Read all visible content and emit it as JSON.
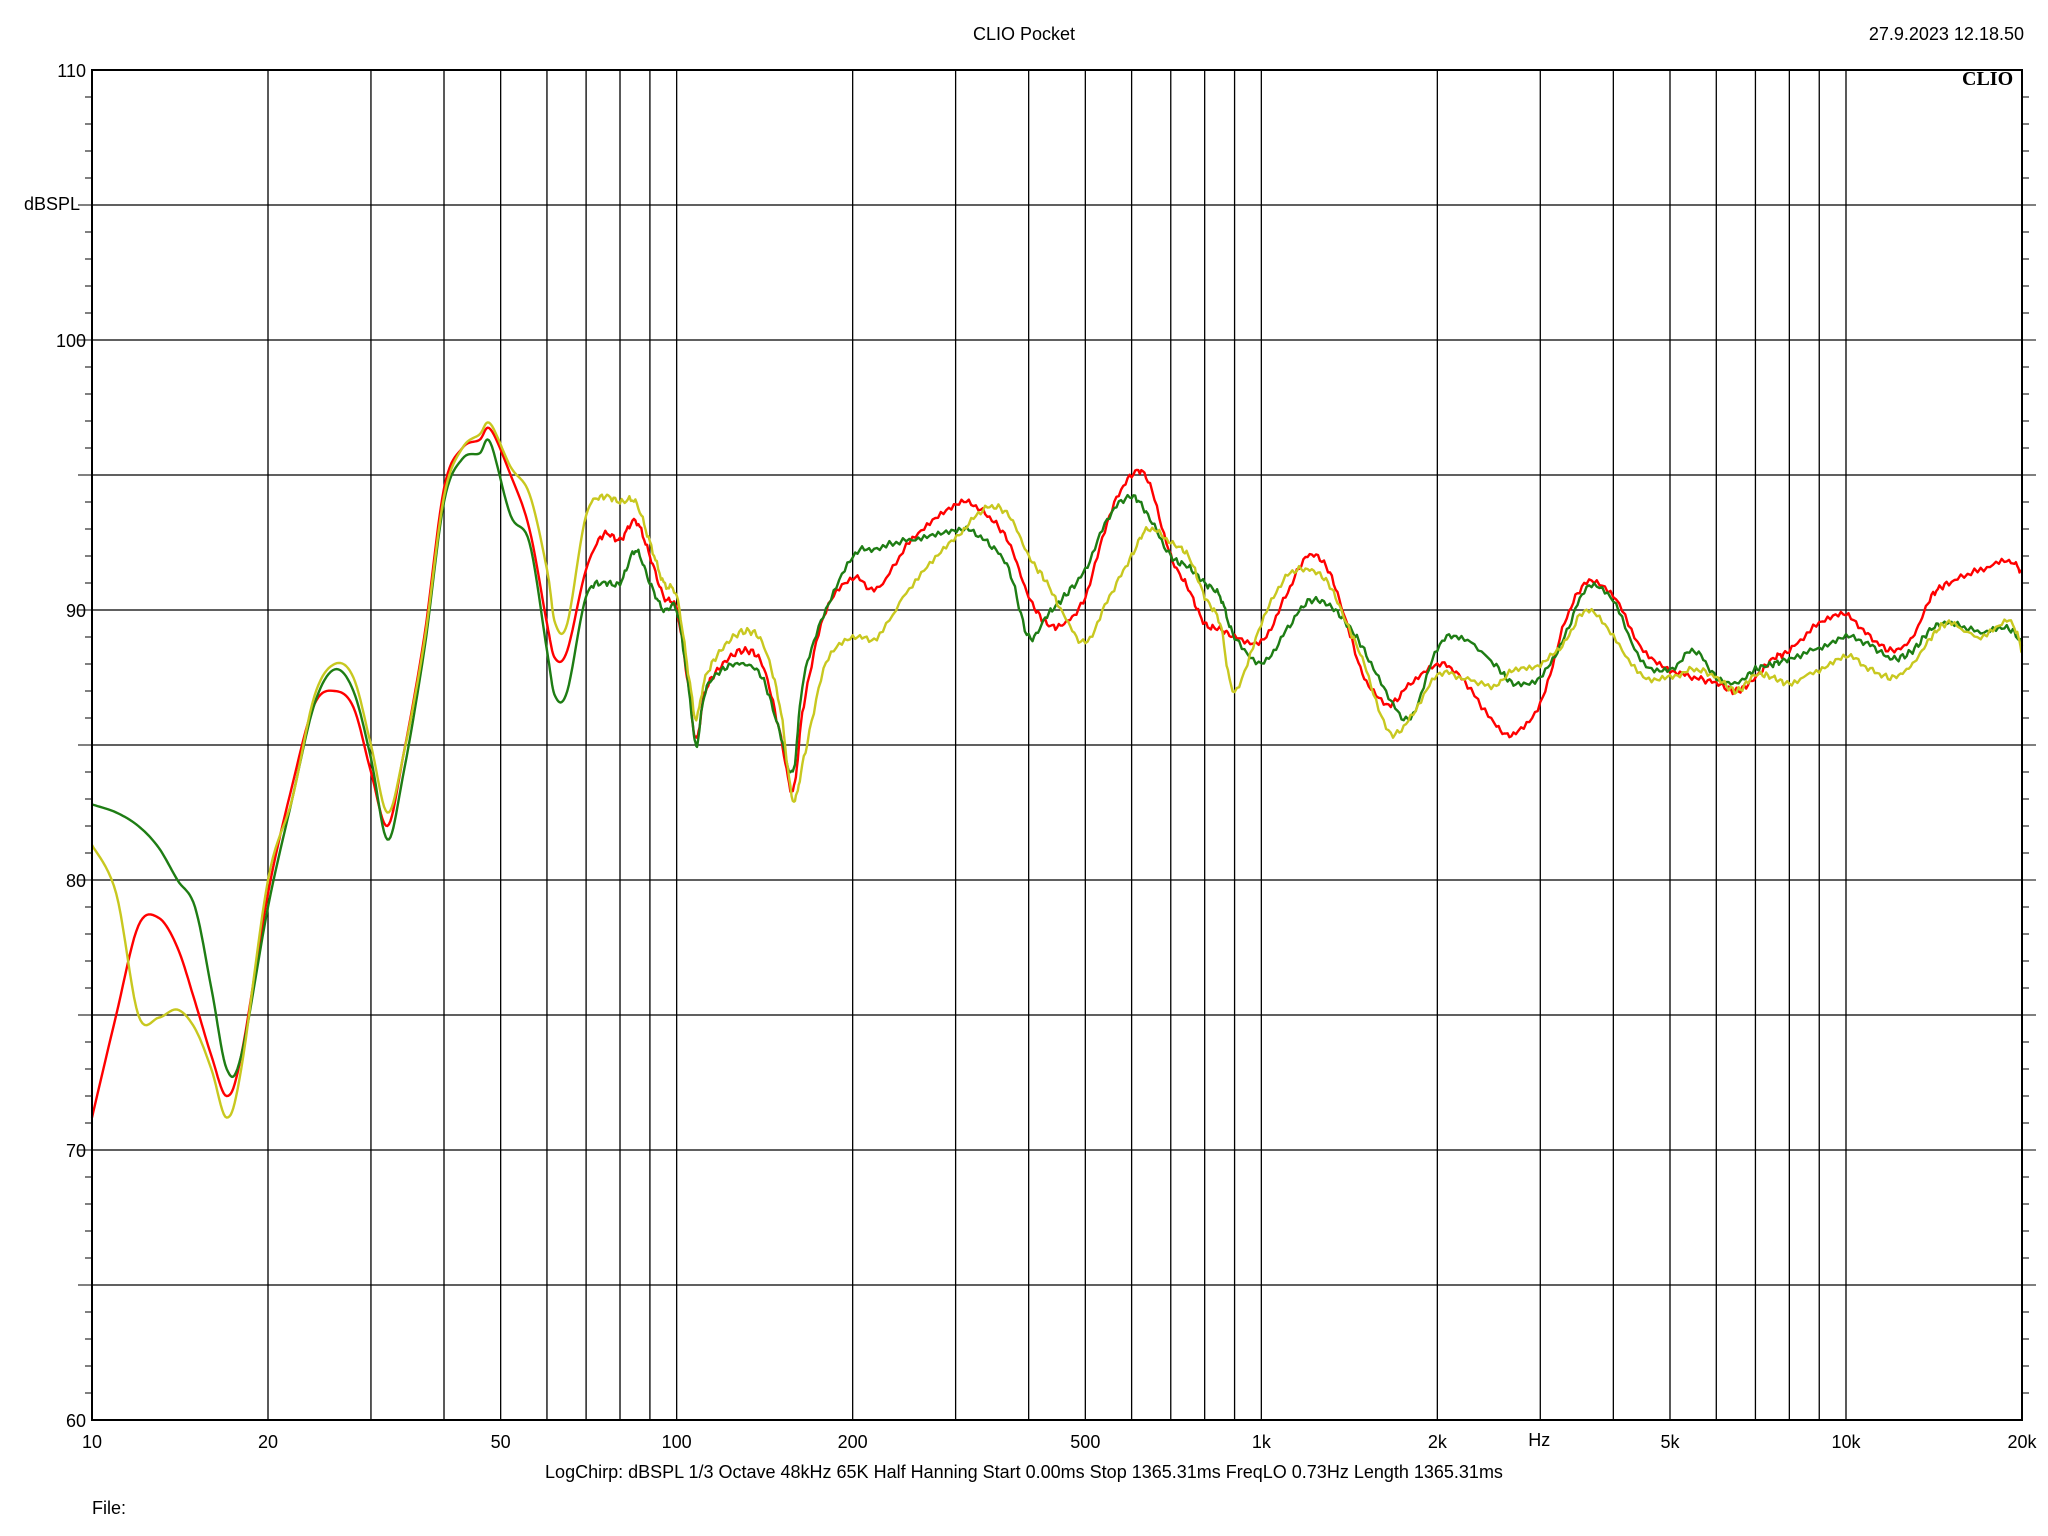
{
  "header": {
    "title": "CLIO Pocket",
    "timestamp": "27.9.2023 12.18.50"
  },
  "brand": "CLIO",
  "footer": {
    "params": "LogChirp:  dBSPL   1/3 Octave   48kHz   65K   Half Hanning   Start 0.00ms     Stop 1365.31ms     FreqLO 0.73Hz     Length 1365.31ms",
    "file_label": "File:"
  },
  "colors": {
    "red": "#ff0000",
    "green": "#1e7d14",
    "yellow": "#c8c820",
    "grid": "#000000"
  },
  "chart_data": {
    "type": "line",
    "title": "CLIO Pocket",
    "xlabel": "Hz",
    "ylabel": "dBSPL",
    "x_scale": "log",
    "xlim": [
      10,
      20000
    ],
    "ylim": [
      60,
      110
    ],
    "grid": true,
    "x_tick_labels": [
      {
        "value": 10,
        "label": "10"
      },
      {
        "value": 20,
        "label": "20"
      },
      {
        "value": 50,
        "label": "50"
      },
      {
        "value": 100,
        "label": "100"
      },
      {
        "value": 200,
        "label": "200"
      },
      {
        "value": 500,
        "label": "500"
      },
      {
        "value": 1000,
        "label": "1k"
      },
      {
        "value": 2000,
        "label": "2k"
      },
      {
        "value": 5000,
        "label": "5k"
      },
      {
        "value": 10000,
        "label": "10k"
      },
      {
        "value": 20000,
        "label": "20k"
      }
    ],
    "y_tick_labels": [
      {
        "value": 60,
        "label": "60"
      },
      {
        "value": 70,
        "label": "70"
      },
      {
        "value": 80,
        "label": "80"
      },
      {
        "value": 90,
        "label": "90"
      },
      {
        "value": 100,
        "label": "100"
      },
      {
        "value": 110,
        "label": "110"
      }
    ],
    "series": [
      {
        "color": "#ff0000",
        "points": [
          [
            10,
            71.2
          ],
          [
            11,
            75
          ],
          [
            12,
            78.3
          ],
          [
            13,
            78.6
          ],
          [
            14,
            77.5
          ],
          [
            15,
            75.5
          ],
          [
            16,
            73.5
          ],
          [
            17,
            72.0
          ],
          [
            18,
            73.5
          ],
          [
            20,
            79.5
          ],
          [
            22,
            83.5
          ],
          [
            24,
            86.5
          ],
          [
            26,
            87.0
          ],
          [
            28,
            86.4
          ],
          [
            30,
            84.0
          ],
          [
            32,
            82.0
          ],
          [
            34,
            84.5
          ],
          [
            37,
            89.0
          ],
          [
            40,
            94.5
          ],
          [
            43,
            96.0
          ],
          [
            46,
            96.3
          ],
          [
            48,
            96.7
          ],
          [
            52,
            95.0
          ],
          [
            56,
            93.0
          ],
          [
            60,
            89.5
          ],
          [
            62,
            88.2
          ],
          [
            65,
            88.5
          ],
          [
            70,
            91.5
          ],
          [
            75,
            92.8
          ],
          [
            80,
            92.6
          ],
          [
            85,
            93.3
          ],
          [
            90,
            92.0
          ],
          [
            95,
            90.5
          ],
          [
            100,
            90.0
          ],
          [
            105,
            87.0
          ],
          [
            108,
            85.2
          ],
          [
            112,
            87.0
          ],
          [
            120,
            88.0
          ],
          [
            130,
            88.5
          ],
          [
            140,
            88.0
          ],
          [
            150,
            85.5
          ],
          [
            158,
            83.3
          ],
          [
            165,
            86.5
          ],
          [
            180,
            90.0
          ],
          [
            200,
            91.2
          ],
          [
            220,
            90.8
          ],
          [
            250,
            92.5
          ],
          [
            280,
            93.5
          ],
          [
            310,
            94.0
          ],
          [
            340,
            93.5
          ],
          [
            370,
            92.5
          ],
          [
            400,
            90.5
          ],
          [
            430,
            89.5
          ],
          [
            460,
            89.5
          ],
          [
            500,
            90.5
          ],
          [
            550,
            93.5
          ],
          [
            600,
            95.0
          ],
          [
            640,
            94.8
          ],
          [
            700,
            92.0
          ],
          [
            750,
            90.8
          ],
          [
            800,
            89.5
          ],
          [
            850,
            89.3
          ],
          [
            900,
            89.0
          ],
          [
            1000,
            88.8
          ],
          [
            1100,
            90.5
          ],
          [
            1200,
            92.0
          ],
          [
            1300,
            91.5
          ],
          [
            1400,
            89.5
          ],
          [
            1500,
            87.5
          ],
          [
            1650,
            86.5
          ],
          [
            1800,
            87.3
          ],
          [
            2000,
            88.0
          ],
          [
            2200,
            87.5
          ],
          [
            2500,
            85.8
          ],
          [
            2700,
            85.4
          ],
          [
            3000,
            86.5
          ],
          [
            3300,
            89.5
          ],
          [
            3600,
            91.0
          ],
          [
            4000,
            90.5
          ],
          [
            4500,
            88.5
          ],
          [
            5000,
            87.8
          ],
          [
            5500,
            87.5
          ],
          [
            6000,
            87.3
          ],
          [
            6500,
            87.0
          ],
          [
            7000,
            87.5
          ],
          [
            7500,
            88.2
          ],
          [
            8000,
            88.5
          ],
          [
            9000,
            89.5
          ],
          [
            10000,
            89.8
          ],
          [
            11000,
            89.0
          ],
          [
            12000,
            88.5
          ],
          [
            13000,
            89.0
          ],
          [
            14000,
            90.5
          ],
          [
            15000,
            91.0
          ],
          [
            17000,
            91.5
          ],
          [
            19000,
            91.8
          ],
          [
            20000,
            91.4
          ]
        ]
      },
      {
        "color": "#1e7d14",
        "points": [
          [
            10,
            82.8
          ],
          [
            11,
            82.5
          ],
          [
            12,
            82.0
          ],
          [
            13,
            81.2
          ],
          [
            14,
            80.0
          ],
          [
            15,
            79.0
          ],
          [
            16,
            76.0
          ],
          [
            17,
            73.0
          ],
          [
            18,
            73.5
          ],
          [
            20,
            79.0
          ],
          [
            22,
            83.0
          ],
          [
            24,
            86.5
          ],
          [
            26,
            87.8
          ],
          [
            28,
            87.0
          ],
          [
            30,
            84.5
          ],
          [
            32,
            81.5
          ],
          [
            34,
            83.8
          ],
          [
            37,
            88.5
          ],
          [
            40,
            94.0
          ],
          [
            43,
            95.6
          ],
          [
            46,
            95.8
          ],
          [
            48,
            96.2
          ],
          [
            52,
            93.5
          ],
          [
            56,
            92.5
          ],
          [
            60,
            88.5
          ],
          [
            62,
            86.8
          ],
          [
            65,
            87.0
          ],
          [
            70,
            90.5
          ],
          [
            75,
            91.0
          ],
          [
            80,
            91.0
          ],
          [
            85,
            92.2
          ],
          [
            90,
            91.0
          ],
          [
            95,
            90.0
          ],
          [
            100,
            90.0
          ],
          [
            105,
            87.0
          ],
          [
            108,
            85.0
          ],
          [
            112,
            87.0
          ],
          [
            120,
            87.8
          ],
          [
            130,
            88.0
          ],
          [
            140,
            87.5
          ],
          [
            150,
            85.5
          ],
          [
            158,
            84.0
          ],
          [
            165,
            87.5
          ],
          [
            180,
            90.0
          ],
          [
            200,
            92.0
          ],
          [
            220,
            92.3
          ],
          [
            250,
            92.6
          ],
          [
            280,
            92.8
          ],
          [
            310,
            93.0
          ],
          [
            340,
            92.5
          ],
          [
            370,
            91.5
          ],
          [
            400,
            89.0
          ],
          [
            430,
            89.8
          ],
          [
            460,
            90.5
          ],
          [
            500,
            91.5
          ],
          [
            550,
            93.5
          ],
          [
            600,
            94.2
          ],
          [
            640,
            93.5
          ],
          [
            700,
            92.0
          ],
          [
            750,
            91.6
          ],
          [
            800,
            91.0
          ],
          [
            850,
            90.5
          ],
          [
            900,
            89.0
          ],
          [
            1000,
            88.0
          ],
          [
            1100,
            89.2
          ],
          [
            1200,
            90.3
          ],
          [
            1300,
            90.2
          ],
          [
            1400,
            89.5
          ],
          [
            1500,
            88.5
          ],
          [
            1650,
            86.8
          ],
          [
            1800,
            86.0
          ],
          [
            2000,
            88.6
          ],
          [
            2200,
            89.0
          ],
          [
            2500,
            88.0
          ],
          [
            2700,
            87.3
          ],
          [
            3000,
            87.5
          ],
          [
            3300,
            89.0
          ],
          [
            3600,
            90.8
          ],
          [
            4000,
            90.3
          ],
          [
            4500,
            88.0
          ],
          [
            5000,
            87.8
          ],
          [
            5500,
            88.5
          ],
          [
            6000,
            87.5
          ],
          [
            6500,
            87.3
          ],
          [
            7000,
            87.8
          ],
          [
            7500,
            88.0
          ],
          [
            8000,
            88.2
          ],
          [
            9000,
            88.6
          ],
          [
            10000,
            89.0
          ],
          [
            11000,
            88.7
          ],
          [
            12000,
            88.2
          ],
          [
            13000,
            88.5
          ],
          [
            14000,
            89.3
          ],
          [
            15000,
            89.5
          ],
          [
            17000,
            89.2
          ],
          [
            19000,
            89.3
          ],
          [
            20000,
            88.7
          ]
        ]
      },
      {
        "color": "#c8c820",
        "points": [
          [
            10,
            81.3
          ],
          [
            11,
            79.5
          ],
          [
            12,
            75.0
          ],
          [
            13,
            74.9
          ],
          [
            14,
            75.2
          ],
          [
            15,
            74.5
          ],
          [
            16,
            73.0
          ],
          [
            17,
            71.2
          ],
          [
            18,
            73.0
          ],
          [
            20,
            80.0
          ],
          [
            22,
            83.0
          ],
          [
            24,
            86.8
          ],
          [
            26,
            88.0
          ],
          [
            28,
            87.5
          ],
          [
            30,
            85.0
          ],
          [
            32,
            82.5
          ],
          [
            34,
            84.5
          ],
          [
            37,
            88.8
          ],
          [
            40,
            94.2
          ],
          [
            43,
            96.0
          ],
          [
            46,
            96.5
          ],
          [
            48,
            96.9
          ],
          [
            52,
            95.3
          ],
          [
            56,
            94.3
          ],
          [
            60,
            91.5
          ],
          [
            62,
            89.5
          ],
          [
            65,
            89.5
          ],
          [
            70,
            93.5
          ],
          [
            75,
            94.2
          ],
          [
            80,
            94.0
          ],
          [
            85,
            94.0
          ],
          [
            90,
            92.5
          ],
          [
            95,
            91.0
          ],
          [
            100,
            90.5
          ],
          [
            105,
            87.5
          ],
          [
            108,
            86.0
          ],
          [
            112,
            87.5
          ],
          [
            120,
            88.6
          ],
          [
            130,
            89.2
          ],
          [
            140,
            88.8
          ],
          [
            150,
            86.5
          ],
          [
            158,
            83.0
          ],
          [
            165,
            84.5
          ],
          [
            180,
            88.0
          ],
          [
            200,
            89.0
          ],
          [
            220,
            89.0
          ],
          [
            250,
            90.8
          ],
          [
            280,
            92.0
          ],
          [
            310,
            93.0
          ],
          [
            340,
            93.8
          ],
          [
            370,
            93.5
          ],
          [
            400,
            92.0
          ],
          [
            430,
            91.0
          ],
          [
            460,
            89.8
          ],
          [
            500,
            88.8
          ],
          [
            550,
            90.5
          ],
          [
            600,
            92.0
          ],
          [
            640,
            93.0
          ],
          [
            700,
            92.5
          ],
          [
            750,
            92.0
          ],
          [
            800,
            90.5
          ],
          [
            850,
            89.5
          ],
          [
            900,
            87.0
          ],
          [
            1000,
            89.5
          ],
          [
            1100,
            91.2
          ],
          [
            1200,
            91.5
          ],
          [
            1300,
            91.0
          ],
          [
            1400,
            89.5
          ],
          [
            1500,
            88.0
          ],
          [
            1650,
            85.5
          ],
          [
            1800,
            86.0
          ],
          [
            2000,
            87.6
          ],
          [
            2200,
            87.5
          ],
          [
            2500,
            87.2
          ],
          [
            2700,
            87.8
          ],
          [
            3000,
            88.0
          ],
          [
            3300,
            88.8
          ],
          [
            3600,
            90.0
          ],
          [
            4000,
            89.0
          ],
          [
            4500,
            87.5
          ],
          [
            5000,
            87.5
          ],
          [
            5500,
            87.8
          ],
          [
            6000,
            87.5
          ],
          [
            6500,
            87.0
          ],
          [
            7000,
            87.6
          ],
          [
            7500,
            87.5
          ],
          [
            8000,
            87.3
          ],
          [
            9000,
            87.8
          ],
          [
            10000,
            88.3
          ],
          [
            11000,
            87.8
          ],
          [
            12000,
            87.5
          ],
          [
            13000,
            88.0
          ],
          [
            14000,
            89.0
          ],
          [
            15000,
            89.5
          ],
          [
            17000,
            89.0
          ],
          [
            19000,
            89.6
          ],
          [
            20000,
            88.5
          ]
        ]
      }
    ]
  }
}
